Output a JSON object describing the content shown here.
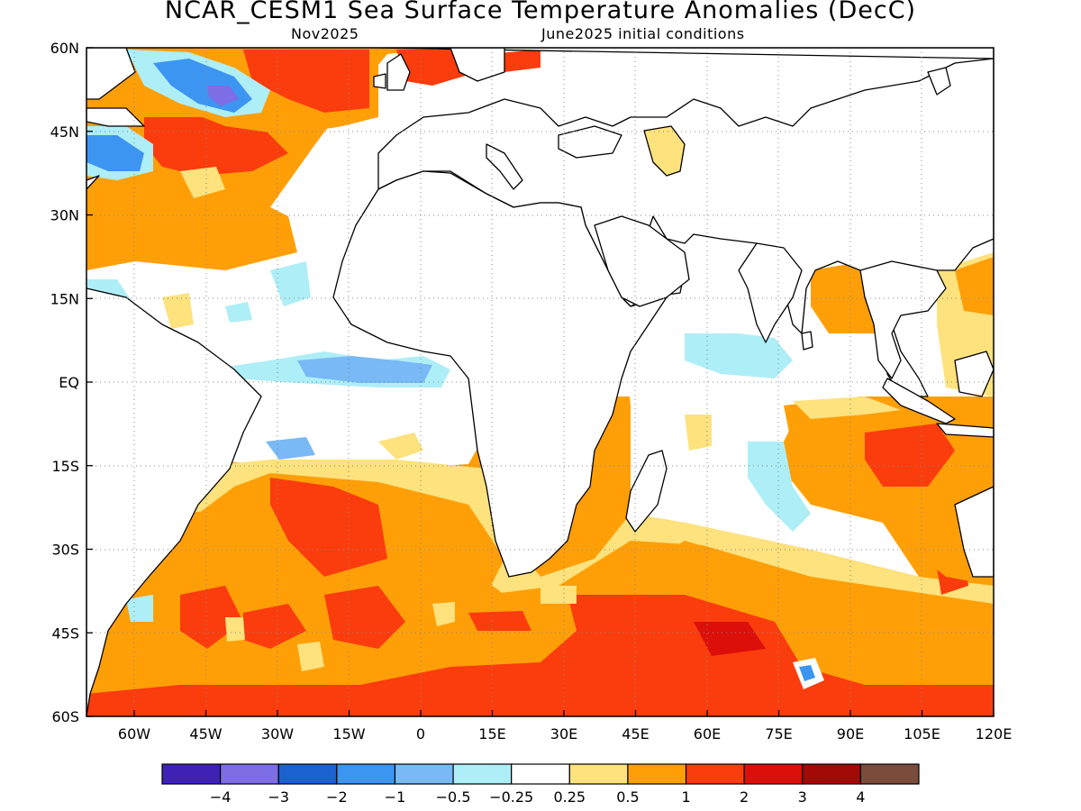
{
  "title": "NCAR_CESM1 Sea Surface Temperature Anomalies (DecC)",
  "subtitle_left": "Nov2025",
  "subtitle_right": "June2025 initial conditions",
  "map": {
    "lon_range": [
      -70,
      120
    ],
    "lat_range": [
      -60,
      60
    ],
    "lat_ticks": [
      "60N",
      "45N",
      "30N",
      "15N",
      "EQ",
      "15S",
      "30S",
      "45S",
      "60S"
    ],
    "lon_ticks": [
      "60W",
      "45W",
      "30W",
      "15W",
      "0",
      "15E",
      "30E",
      "45E",
      "60E",
      "75E",
      "90E",
      "105E",
      "120E"
    ],
    "grid": "dotted"
  },
  "colorbar": {
    "colors": [
      "#3f22b5",
      "#7d6ee5",
      "#1b62d0",
      "#3d95f2",
      "#78b9f6",
      "#aeeef7",
      "#ffffff",
      "#fde27d",
      "#ff9f08",
      "#fb3c0d",
      "#dc0f0a",
      "#a10a06",
      "#7b4b3b"
    ],
    "labels": [
      "−4",
      "−3",
      "−2",
      "−1",
      "−0.5",
      "−0.25",
      "0.25",
      "0.5",
      "1",
      "2",
      "3",
      "4"
    ]
  },
  "legend_colors": {
    "strong_cool": "#3d95f2",
    "cool": "#aeeef7",
    "neutral": "#ffffff",
    "slight_warm": "#fde27d",
    "warm": "#ff9f08",
    "very_warm": "#fb3c0d",
    "extreme": "#dc0f0a"
  }
}
